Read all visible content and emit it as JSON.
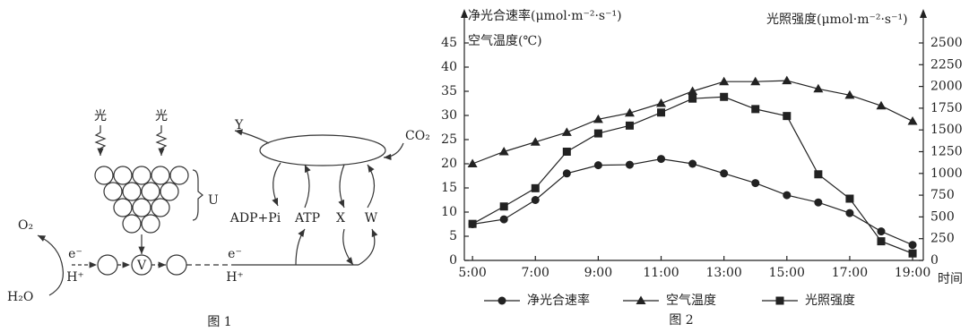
{
  "figure1": {
    "caption": "图 1",
    "labels": {
      "light_left": "光",
      "light_right": "光",
      "Y": "Y",
      "CO2": "CO₂",
      "U": "U",
      "ADP_Pi": "ADP+Pi",
      "ATP": "ATP",
      "X": "X",
      "W": "W",
      "O2": "O₂",
      "e_left": "e⁻",
      "H_left": "H⁺",
      "V": "V",
      "e_right": "e⁻",
      "H_right": "H⁺",
      "H2O": "H₂O"
    }
  },
  "chart_data": {
    "type": "line",
    "caption": "图 2",
    "y_label": "净光合速率(μmol·m⁻²·s⁻¹)",
    "y_label_2": "空气温度(℃)",
    "y2_label": "光照强度(μmol·m⁻²·s⁻¹)",
    "x_label": "时间",
    "x": [
      5,
      6,
      7,
      8,
      9,
      10,
      11,
      12,
      13,
      14,
      15,
      16,
      17,
      18,
      19
    ],
    "xlim": [
      4.74,
      19.34
    ],
    "xticks": [
      {
        "value": 5,
        "label": "5:00"
      },
      {
        "value": 7,
        "label": "7:00"
      },
      {
        "value": 9,
        "label": "9:00"
      },
      {
        "value": 11,
        "label": "11:00"
      },
      {
        "value": 13,
        "label": "13:00"
      },
      {
        "value": 15,
        "label": "15:00"
      },
      {
        "value": 17,
        "label": "17:00"
      },
      {
        "value": 19,
        "label": "19:00"
      }
    ],
    "ylim": [
      0,
      45
    ],
    "yticks": [
      0,
      5,
      10,
      15,
      20,
      25,
      30,
      35,
      40,
      45
    ],
    "y2lim": [
      0,
      2500
    ],
    "y2ticks": [
      0,
      250,
      500,
      750,
      1000,
      1250,
      1500,
      1750,
      2000,
      2250,
      2500
    ],
    "grid": false,
    "legend": "bottom",
    "series": [
      {
        "name": "净光合速率",
        "color": "#222222",
        "marker": "circle",
        "values": [
          7.5,
          8.5,
          12.5,
          18,
          19.7,
          19.8,
          21,
          20,
          18,
          16,
          13.5,
          12,
          9.8,
          6,
          3.2
        ]
      },
      {
        "name": "空气温度",
        "color": "#222222",
        "marker": "triangle",
        "values": [
          20,
          22.5,
          24.5,
          26.5,
          29.2,
          30.5,
          32.5,
          35,
          37,
          37,
          37.2,
          35.5,
          34.2,
          32,
          28.8
        ]
      },
      {
        "name": "光照强度",
        "color": "#222222",
        "marker": "square",
        "axis": "y2",
        "values": [
          420,
          620,
          830,
          1250,
          1460,
          1550,
          1700,
          1860,
          1880,
          1740,
          1660,
          990,
          710,
          220,
          80
        ]
      }
    ]
  }
}
